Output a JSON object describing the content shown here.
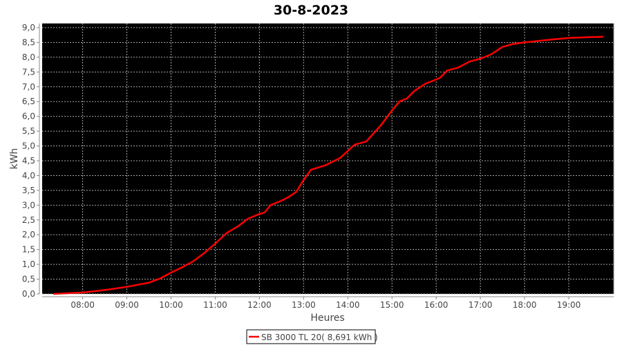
{
  "chart_data": {
    "type": "line",
    "title": "30-8-2023",
    "xlabel": "Heures",
    "ylabel": "kWh",
    "xlim": [
      "07:05",
      "20:01"
    ],
    "ylim": [
      0,
      9
    ],
    "grid": true,
    "legend_placement": "bottom",
    "background": "#000000",
    "x_ticks": [
      "08:00",
      "09:00",
      "10:00",
      "11:00",
      "12:00",
      "13:00",
      "14:00",
      "15:00",
      "16:00",
      "17:00",
      "18:00",
      "19:00"
    ],
    "y_ticks": [
      "0,0",
      "0,5",
      "1,0",
      "1,5",
      "2,0",
      "2,5",
      "3,0",
      "3,5",
      "4,0",
      "4,5",
      "5,0",
      "5,5",
      "6,0",
      "6,5",
      "7,0",
      "7,5",
      "8,0",
      "8,5",
      "9,0"
    ],
    "series": [
      {
        "name": "SB 3000 TL 20( 8,691 kWh )",
        "color": "#ff0000",
        "x": [
          "07:20",
          "08:00",
          "08:30",
          "09:00",
          "09:30",
          "09:45",
          "10:00",
          "10:15",
          "10:30",
          "10:45",
          "11:00",
          "11:15",
          "11:30",
          "11:45",
          "12:00",
          "12:07",
          "12:15",
          "12:30",
          "12:40",
          "12:50",
          "13:00",
          "13:10",
          "13:30",
          "13:50",
          "14:05",
          "14:10",
          "14:25",
          "14:45",
          "15:00",
          "15:10",
          "15:20",
          "15:30",
          "15:45",
          "16:00",
          "16:05",
          "16:15",
          "16:30",
          "16:45",
          "17:00",
          "17:15",
          "17:30",
          "17:45",
          "18:00",
          "18:30",
          "19:00",
          "19:30",
          "19:47"
        ],
        "y": [
          0.0,
          0.05,
          0.13,
          0.24,
          0.38,
          0.52,
          0.72,
          0.9,
          1.1,
          1.38,
          1.7,
          2.05,
          2.27,
          2.55,
          2.7,
          2.75,
          3.0,
          3.15,
          3.28,
          3.45,
          3.85,
          4.2,
          4.35,
          4.6,
          4.95,
          5.05,
          5.15,
          5.7,
          6.2,
          6.5,
          6.6,
          6.85,
          7.1,
          7.25,
          7.3,
          7.55,
          7.65,
          7.85,
          7.95,
          8.1,
          8.35,
          8.45,
          8.5,
          8.58,
          8.65,
          8.68,
          8.691
        ]
      }
    ]
  }
}
